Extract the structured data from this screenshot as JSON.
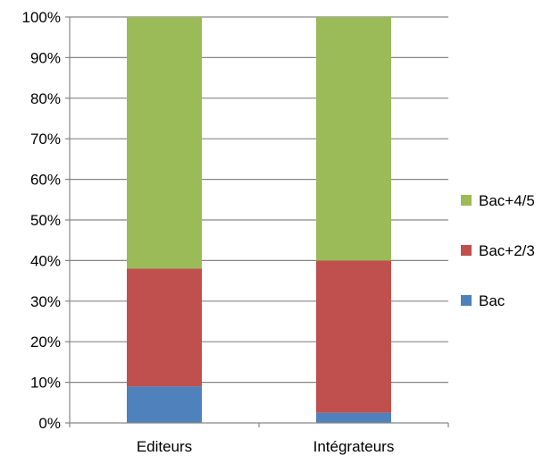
{
  "chart_data": {
    "type": "bar",
    "stacked": true,
    "percent": true,
    "categories": [
      "Editeurs",
      "Intégrateurs"
    ],
    "series": [
      {
        "name": "Bac",
        "color": "#4F81BD",
        "values": [
          9,
          2.5
        ]
      },
      {
        "name": "Bac+2/3",
        "color": "#C0504D",
        "values": [
          29,
          37.5
        ]
      },
      {
        "name": "Bac+4/5",
        "color": "#9BBB59",
        "values": [
          62,
          60
        ]
      }
    ],
    "title": "",
    "xlabel": "",
    "ylabel": "",
    "ylim": [
      0,
      100
    ],
    "yticks": [
      "0%",
      "10%",
      "20%",
      "30%",
      "40%",
      "50%",
      "60%",
      "70%",
      "80%",
      "90%",
      "100%"
    ],
    "grid": true,
    "legend_position": "right"
  }
}
